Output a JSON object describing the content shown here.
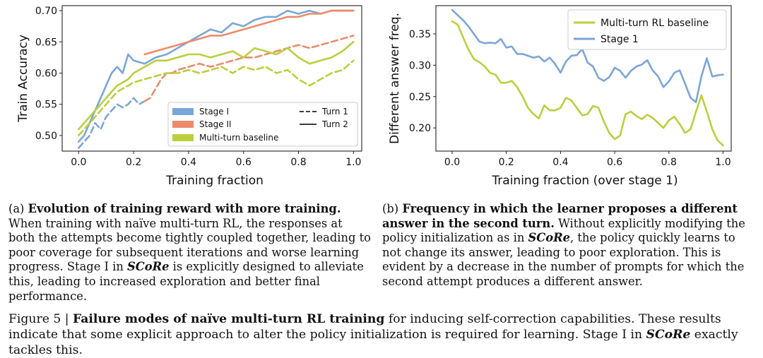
{
  "chart_data": [
    {
      "type": "line",
      "xlabel": "Training fraction",
      "ylabel": "Train Accuracy",
      "xlim": [
        -0.06,
        1.03
      ],
      "ylim": [
        0.475,
        0.708
      ],
      "xticks": [
        0.0,
        0.2,
        0.4,
        0.6,
        0.8,
        1.0
      ],
      "yticks": [
        0.5,
        0.55,
        0.6,
        0.65,
        0.7
      ],
      "xtick_labels": [
        "0.0",
        "0.2",
        "0.4",
        "0.6",
        "0.8",
        "1.0"
      ],
      "ytick_labels": [
        "0.50",
        "0.55",
        "0.60",
        "0.65",
        "0.70"
      ],
      "grid": false,
      "legend_placement": "lower-right",
      "legend": {
        "series": [
          {
            "label": "Stage I",
            "color": "#7aa6d8"
          },
          {
            "label": "Stage II",
            "color": "#ec8b6c"
          },
          {
            "label": "Multi-turn baseline",
            "color": "#bbcf3c"
          }
        ],
        "styles": [
          {
            "label": "Turn 1",
            "dash": "dashed"
          },
          {
            "label": "Turn 2",
            "dash": "solid"
          }
        ]
      },
      "series": [
        {
          "key": "s1t2",
          "color": "#7aa6d8",
          "dash": "solid",
          "x": [
            0,
            0.02,
            0.04,
            0.06,
            0.08,
            0.1,
            0.12,
            0.14,
            0.16,
            0.18,
            0.2,
            0.24,
            0.28,
            0.32,
            0.36,
            0.4,
            0.44,
            0.48,
            0.52,
            0.56,
            0.6,
            0.64,
            0.68,
            0.72,
            0.76,
            0.8,
            0.84,
            0.88,
            0.92,
            0.96,
            1.0
          ],
          "y": [
            0.49,
            0.5,
            0.52,
            0.54,
            0.56,
            0.58,
            0.6,
            0.61,
            0.6,
            0.63,
            0.62,
            0.615,
            0.625,
            0.63,
            0.64,
            0.65,
            0.66,
            0.67,
            0.665,
            0.68,
            0.675,
            0.685,
            0.69,
            0.69,
            0.7,
            0.695,
            0.7,
            0.695,
            0.7,
            0.7,
            0.7
          ]
        },
        {
          "key": "s1t1",
          "color": "#7aa6d8",
          "dash": "dashed",
          "x": [
            0,
            0.02,
            0.04,
            0.06,
            0.08,
            0.1,
            0.12,
            0.14,
            0.16,
            0.18,
            0.2,
            0.22,
            0.24
          ],
          "y": [
            0.48,
            0.49,
            0.5,
            0.52,
            0.51,
            0.53,
            0.54,
            0.55,
            0.545,
            0.55,
            0.56,
            0.55,
            0.555
          ]
        },
        {
          "key": "s2t2",
          "color": "#ec8b6c",
          "dash": "solid",
          "x": [
            0.24,
            0.28,
            0.32,
            0.36,
            0.4,
            0.44,
            0.48,
            0.52,
            0.56,
            0.6,
            0.64,
            0.68,
            0.72,
            0.76,
            0.8,
            0.84,
            0.88,
            0.92,
            0.96,
            1.0
          ],
          "y": [
            0.63,
            0.635,
            0.64,
            0.645,
            0.65,
            0.655,
            0.66,
            0.66,
            0.665,
            0.67,
            0.675,
            0.68,
            0.685,
            0.69,
            0.69,
            0.695,
            0.695,
            0.7,
            0.7,
            0.7
          ]
        },
        {
          "key": "s2t1",
          "color": "#ec8b6c",
          "dash": "dashed",
          "x": [
            0.24,
            0.26,
            0.28,
            0.3,
            0.32,
            0.34,
            0.36,
            0.4,
            0.44,
            0.48,
            0.52,
            0.56,
            0.6,
            0.64,
            0.68,
            0.72,
            0.76,
            0.8,
            0.84,
            0.88,
            0.92,
            0.96,
            1.0
          ],
          "y": [
            0.555,
            0.56,
            0.575,
            0.59,
            0.6,
            0.6,
            0.605,
            0.61,
            0.615,
            0.61,
            0.615,
            0.62,
            0.625,
            0.625,
            0.63,
            0.635,
            0.64,
            0.645,
            0.64,
            0.645,
            0.65,
            0.655,
            0.66
          ]
        },
        {
          "key": "mbt2",
          "color": "#bbcf3c",
          "dash": "solid",
          "x": [
            0,
            0.02,
            0.04,
            0.06,
            0.08,
            0.1,
            0.12,
            0.14,
            0.16,
            0.18,
            0.2,
            0.24,
            0.28,
            0.32,
            0.36,
            0.4,
            0.44,
            0.48,
            0.52,
            0.56,
            0.6,
            0.64,
            0.68,
            0.72,
            0.76,
            0.8,
            0.84,
            0.88,
            0.92,
            0.96,
            1.0
          ],
          "y": [
            0.51,
            0.52,
            0.53,
            0.54,
            0.55,
            0.56,
            0.57,
            0.58,
            0.585,
            0.59,
            0.6,
            0.61,
            0.62,
            0.62,
            0.625,
            0.63,
            0.63,
            0.625,
            0.63,
            0.635,
            0.625,
            0.64,
            0.635,
            0.63,
            0.64,
            0.625,
            0.615,
            0.62,
            0.625,
            0.635,
            0.65
          ]
        },
        {
          "key": "mbt1",
          "color": "#bbcf3c",
          "dash": "dashed",
          "x": [
            0,
            0.02,
            0.04,
            0.06,
            0.08,
            0.1,
            0.12,
            0.14,
            0.16,
            0.18,
            0.2,
            0.24,
            0.28,
            0.32,
            0.36,
            0.4,
            0.44,
            0.48,
            0.52,
            0.56,
            0.6,
            0.64,
            0.68,
            0.72,
            0.76,
            0.8,
            0.84,
            0.88,
            0.92,
            0.96,
            1.0
          ],
          "y": [
            0.5,
            0.51,
            0.52,
            0.53,
            0.54,
            0.55,
            0.56,
            0.57,
            0.575,
            0.58,
            0.585,
            0.59,
            0.595,
            0.6,
            0.6,
            0.605,
            0.6,
            0.605,
            0.61,
            0.6,
            0.61,
            0.605,
            0.61,
            0.6,
            0.605,
            0.59,
            0.58,
            0.59,
            0.6,
            0.605,
            0.62
          ]
        }
      ]
    },
    {
      "type": "line",
      "xlabel": "Training fraction (over stage 1)",
      "ylabel": "Different answer freq.",
      "xlim": [
        -0.06,
        1.03
      ],
      "ylim": [
        0.163,
        0.395
      ],
      "xticks": [
        0.0,
        0.2,
        0.4,
        0.6,
        0.8,
        1.0
      ],
      "yticks": [
        0.2,
        0.25,
        0.3,
        0.35
      ],
      "xtick_labels": [
        "0.0",
        "0.2",
        "0.4",
        "0.6",
        "0.8",
        "1.0"
      ],
      "ytick_labels": [
        "0.20",
        "0.25",
        "0.30",
        "0.35"
      ],
      "grid": false,
      "legend_placement": "top-right",
      "legend": {
        "series": [
          {
            "label": "Multi-turn RL baseline",
            "color": "#bbcf3c"
          },
          {
            "label": "Stage 1",
            "color": "#7aa6d8"
          }
        ]
      },
      "series": [
        {
          "key": "base",
          "color": "#bbcf3c",
          "dash": "solid",
          "x": [
            0.0,
            0.02,
            0.04,
            0.06,
            0.08,
            0.1,
            0.12,
            0.14,
            0.16,
            0.18,
            0.2,
            0.22,
            0.24,
            0.26,
            0.28,
            0.3,
            0.32,
            0.34,
            0.36,
            0.38,
            0.4,
            0.42,
            0.44,
            0.46,
            0.48,
            0.5,
            0.52,
            0.54,
            0.56,
            0.58,
            0.6,
            0.62,
            0.64,
            0.66,
            0.68,
            0.7,
            0.72,
            0.74,
            0.76,
            0.78,
            0.8,
            0.82,
            0.84,
            0.86,
            0.88,
            0.9,
            0.92,
            0.94,
            0.96,
            0.98,
            1.0
          ],
          "y": [
            0.37,
            0.365,
            0.345,
            0.325,
            0.31,
            0.305,
            0.298,
            0.288,
            0.285,
            0.272,
            0.272,
            0.275,
            0.265,
            0.25,
            0.232,
            0.222,
            0.215,
            0.236,
            0.228,
            0.228,
            0.232,
            0.248,
            0.244,
            0.232,
            0.22,
            0.222,
            0.235,
            0.232,
            0.21,
            0.192,
            0.182,
            0.188,
            0.222,
            0.226,
            0.219,
            0.214,
            0.221,
            0.216,
            0.208,
            0.2,
            0.212,
            0.218,
            0.206,
            0.192,
            0.198,
            0.226,
            0.252,
            0.226,
            0.198,
            0.18,
            0.172
          ]
        },
        {
          "key": "stage1",
          "color": "#7aa6d8",
          "dash": "solid",
          "x": [
            0.0,
            0.02,
            0.04,
            0.06,
            0.08,
            0.1,
            0.12,
            0.14,
            0.16,
            0.18,
            0.2,
            0.22,
            0.24,
            0.26,
            0.28,
            0.3,
            0.32,
            0.34,
            0.36,
            0.38,
            0.4,
            0.42,
            0.44,
            0.46,
            0.48,
            0.5,
            0.52,
            0.54,
            0.56,
            0.58,
            0.6,
            0.62,
            0.64,
            0.66,
            0.68,
            0.7,
            0.72,
            0.74,
            0.76,
            0.78,
            0.8,
            0.82,
            0.84,
            0.86,
            0.88,
            0.9,
            0.92,
            0.94,
            0.96,
            0.98,
            1.0
          ],
          "y": [
            0.388,
            0.38,
            0.372,
            0.362,
            0.35,
            0.338,
            0.335,
            0.336,
            0.335,
            0.342,
            0.328,
            0.33,
            0.318,
            0.318,
            0.315,
            0.312,
            0.314,
            0.306,
            0.312,
            0.302,
            0.288,
            0.306,
            0.315,
            0.316,
            0.326,
            0.304,
            0.298,
            0.28,
            0.275,
            0.281,
            0.296,
            0.291,
            0.28,
            0.291,
            0.298,
            0.301,
            0.308,
            0.292,
            0.282,
            0.265,
            0.274,
            0.288,
            0.292,
            0.27,
            0.248,
            0.241,
            0.282,
            0.311,
            0.282,
            0.284,
            0.285
          ]
        }
      ]
    }
  ],
  "caption_a": {
    "label": "(a) ",
    "title": "Evolution of training reward with more training.",
    "text": " When training with naïve multi-turn RL, the responses at both the attempts become tightly coupled together, leading to poor coverage for subsequent iterations and worse learning progress. Stage I in ",
    "method": "SCoRe",
    "text_end": " is explicitly designed to alleviate this, leading to increased exploration and better final performance."
  },
  "caption_b": {
    "label": "(b) ",
    "title": "Frequency in which the learner proposes a different answer in the second turn.",
    "text": " Without explicitly modifying the policy initialization as in ",
    "method": "SCoRe",
    "text_end": ", the policy quickly learns to not change its answer, leading to poor exploration. This is evident by a decrease in the number of prompts for which the second attempt produces a different answer."
  },
  "figure_caption": {
    "label": "Figure 5 | ",
    "title": "Failure modes of naïve multi-turn RL training",
    "text": " for inducing self-correction capabilities. These results indicate that some explicit approach to alter the policy initialization is required for learning. Stage I in ",
    "method": "SCoRe",
    "text_end": " exactly tackles this."
  }
}
